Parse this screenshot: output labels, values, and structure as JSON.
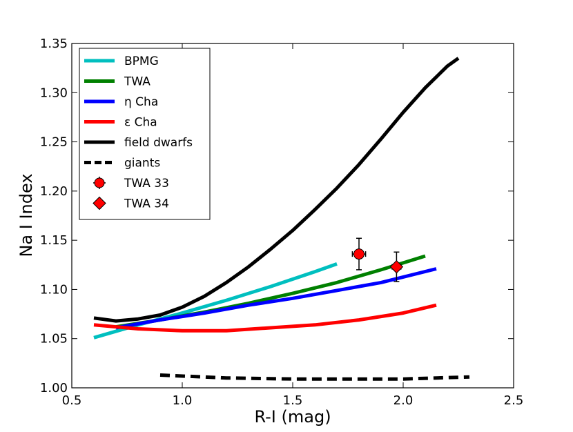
{
  "chart_data": {
    "type": "line",
    "title": "",
    "xlabel": "R-I (mag)",
    "ylabel": "Na I Index",
    "xlim": [
      0.5,
      2.5
    ],
    "ylim": [
      1.0,
      1.35
    ],
    "xticks": [
      0.5,
      1.0,
      1.5,
      2.0,
      2.5
    ],
    "xtick_labels": [
      "0.5",
      "1.0",
      "1.5",
      "2.0",
      "2.5"
    ],
    "yticks": [
      1.0,
      1.05,
      1.1,
      1.15,
      1.2,
      1.25,
      1.3,
      1.35
    ],
    "ytick_labels": [
      "1.00",
      "1.05",
      "1.10",
      "1.15",
      "1.20",
      "1.25",
      "1.30",
      "1.35"
    ],
    "grid": false,
    "legend_position": "upper-left",
    "series": [
      {
        "name": "BPMG",
        "style": "solid",
        "color": "#00bfbf",
        "x": [
          0.6,
          0.8,
          1.0,
          1.2,
          1.4,
          1.6,
          1.7
        ],
        "y": [
          1.051,
          1.064,
          1.076,
          1.089,
          1.103,
          1.118,
          1.126
        ]
      },
      {
        "name": "TWA",
        "style": "solid",
        "color": "#008000",
        "x": [
          0.7,
          0.9,
          1.1,
          1.3,
          1.5,
          1.7,
          1.9,
          2.1
        ],
        "y": [
          1.062,
          1.069,
          1.077,
          1.086,
          1.096,
          1.107,
          1.12,
          1.134
        ]
      },
      {
        "name": "η Cha",
        "style": "solid",
        "color": "#0000ff",
        "x": [
          0.7,
          0.9,
          1.1,
          1.3,
          1.5,
          1.7,
          1.9,
          2.15
        ],
        "y": [
          1.061,
          1.069,
          1.076,
          1.084,
          1.091,
          1.099,
          1.107,
          1.121
        ]
      },
      {
        "name": "ε Cha",
        "style": "solid",
        "color": "#ff0000",
        "x": [
          0.6,
          0.8,
          1.0,
          1.2,
          1.4,
          1.6,
          1.8,
          2.0,
          2.15
        ],
        "y": [
          1.064,
          1.06,
          1.058,
          1.058,
          1.061,
          1.064,
          1.069,
          1.076,
          1.084
        ]
      },
      {
        "name": "field dwarfs",
        "style": "solid",
        "color": "#000000",
        "x": [
          0.6,
          0.7,
          0.8,
          0.9,
          1.0,
          1.1,
          1.2,
          1.3,
          1.4,
          1.5,
          1.6,
          1.7,
          1.8,
          1.9,
          2.0,
          2.1,
          2.2,
          2.25
        ],
        "y": [
          1.071,
          1.068,
          1.07,
          1.074,
          1.082,
          1.093,
          1.107,
          1.123,
          1.141,
          1.16,
          1.181,
          1.203,
          1.227,
          1.253,
          1.28,
          1.305,
          1.327,
          1.335
        ]
      },
      {
        "name": "giants",
        "style": "dashed",
        "color": "#000000",
        "x": [
          0.9,
          1.2,
          1.5,
          1.8,
          2.0,
          2.15,
          2.3
        ],
        "y": [
          1.013,
          1.01,
          1.009,
          1.009,
          1.009,
          1.01,
          1.011
        ]
      }
    ],
    "points": [
      {
        "name": "TWA 33",
        "marker": "circle",
        "color": "#ff0000",
        "x": 1.8,
        "y": 1.136,
        "xerr": 0.03,
        "yerr": 0.016
      },
      {
        "name": "TWA 34",
        "marker": "diamond",
        "color": "#ff0000",
        "x": 1.97,
        "y": 1.123,
        "xerr": 0.02,
        "yerr": 0.015
      }
    ]
  }
}
